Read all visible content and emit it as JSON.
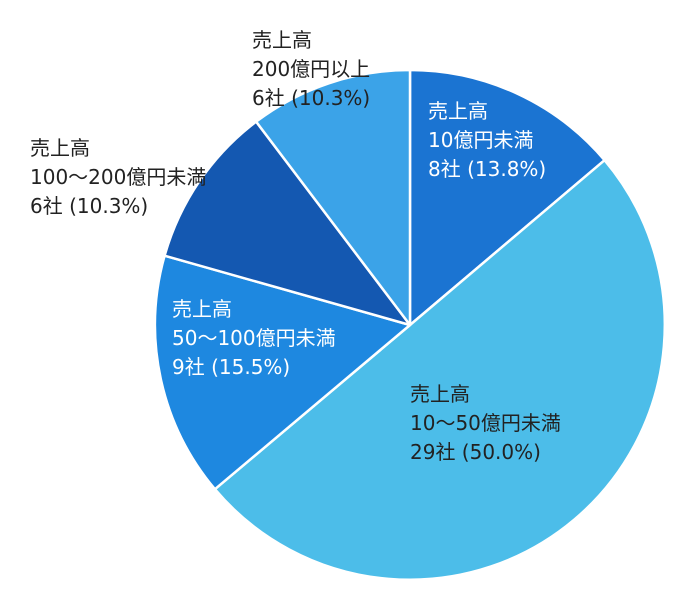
{
  "chart_data": {
    "type": "pie",
    "title": "",
    "start_angle_deg": 0,
    "direction": "clockwise",
    "slices": [
      {
        "lines": [
          "売上高",
          "10億円未満",
          "8社 (13.8%)"
        ],
        "count": 8,
        "percent": 13.8,
        "color": "#1b74d2",
        "label_color": "#ffffff"
      },
      {
        "lines": [
          "売上高",
          "10～50億円未満",
          "29社 (50.0%)"
        ],
        "count": 29,
        "percent": 50.0,
        "color": "#4cbde9",
        "label_color": "#222222"
      },
      {
        "lines": [
          "売上高",
          "50～100億円未満",
          "9社 (15.5%)"
        ],
        "count": 9,
        "percent": 15.5,
        "color": "#1e88e0",
        "label_color": "#ffffff"
      },
      {
        "lines": [
          "売上高",
          "100～200億円未満",
          "6社 (10.3%)"
        ],
        "count": 6,
        "percent": 10.3,
        "color": "#1458b1",
        "label_color": "#222222"
      },
      {
        "lines": [
          "売上高",
          "200億円以上",
          "6社 (10.3%)"
        ],
        "count": 6,
        "percent": 10.3,
        "color": "#3ba3e8",
        "label_color": "#222222"
      }
    ]
  }
}
